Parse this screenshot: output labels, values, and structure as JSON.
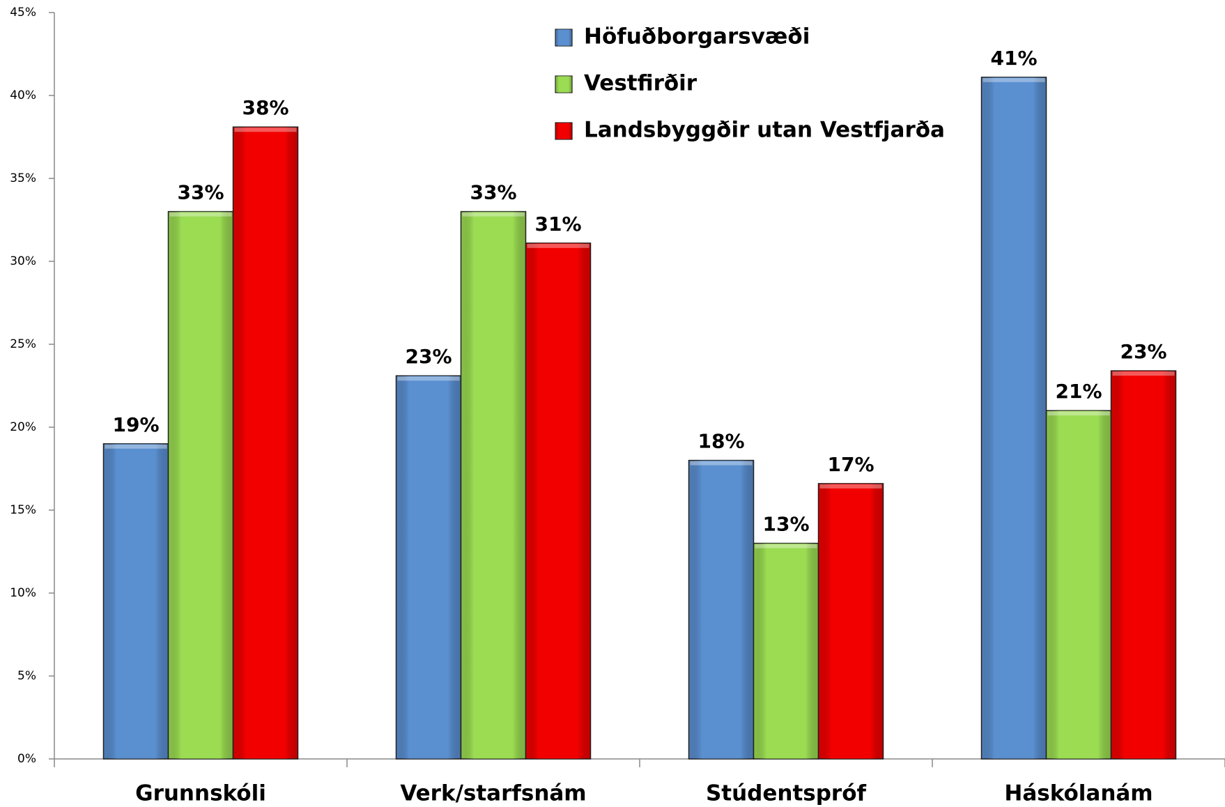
{
  "chart_data": {
    "type": "bar",
    "categories": [
      "Grunnskóli",
      "Verk/starfsnám",
      "Stúdentspróf",
      "Háskólanám"
    ],
    "series": [
      {
        "name": "Höfuðborgarsvæði",
        "color": "#5a8fd0",
        "values": [
          19.0,
          23.1,
          18.0,
          41.1
        ],
        "value_labels": [
          "19%",
          "23%",
          "18%",
          "41%"
        ]
      },
      {
        "name": "Vestfirðir",
        "color": "#9bdc52",
        "values": [
          33.0,
          33.0,
          13.0,
          21.0
        ],
        "value_labels": [
          "33%",
          "33%",
          "13%",
          "21%"
        ]
      },
      {
        "name": "Landsbyggðir  utan Vestfjarða",
        "color": "#f20000",
        "values": [
          38.1,
          31.1,
          16.6,
          23.4
        ],
        "value_labels": [
          "38%",
          "31%",
          "17%",
          "23%"
        ]
      }
    ],
    "ylim": [
      0,
      45
    ],
    "yticks": [
      {
        "value": 0,
        "label": "0%"
      },
      {
        "value": 5,
        "label": "5%"
      },
      {
        "value": 10,
        "label": "10%"
      },
      {
        "value": 15,
        "label": "15%"
      },
      {
        "value": 20,
        "label": "20%"
      },
      {
        "value": 25,
        "label": "25%"
      },
      {
        "value": 30,
        "label": "30%"
      },
      {
        "value": 35,
        "label": "35%"
      },
      {
        "value": 40,
        "label": "40%"
      },
      {
        "value": 45,
        "label": "45%"
      }
    ],
    "grid": false,
    "legend": "top"
  }
}
